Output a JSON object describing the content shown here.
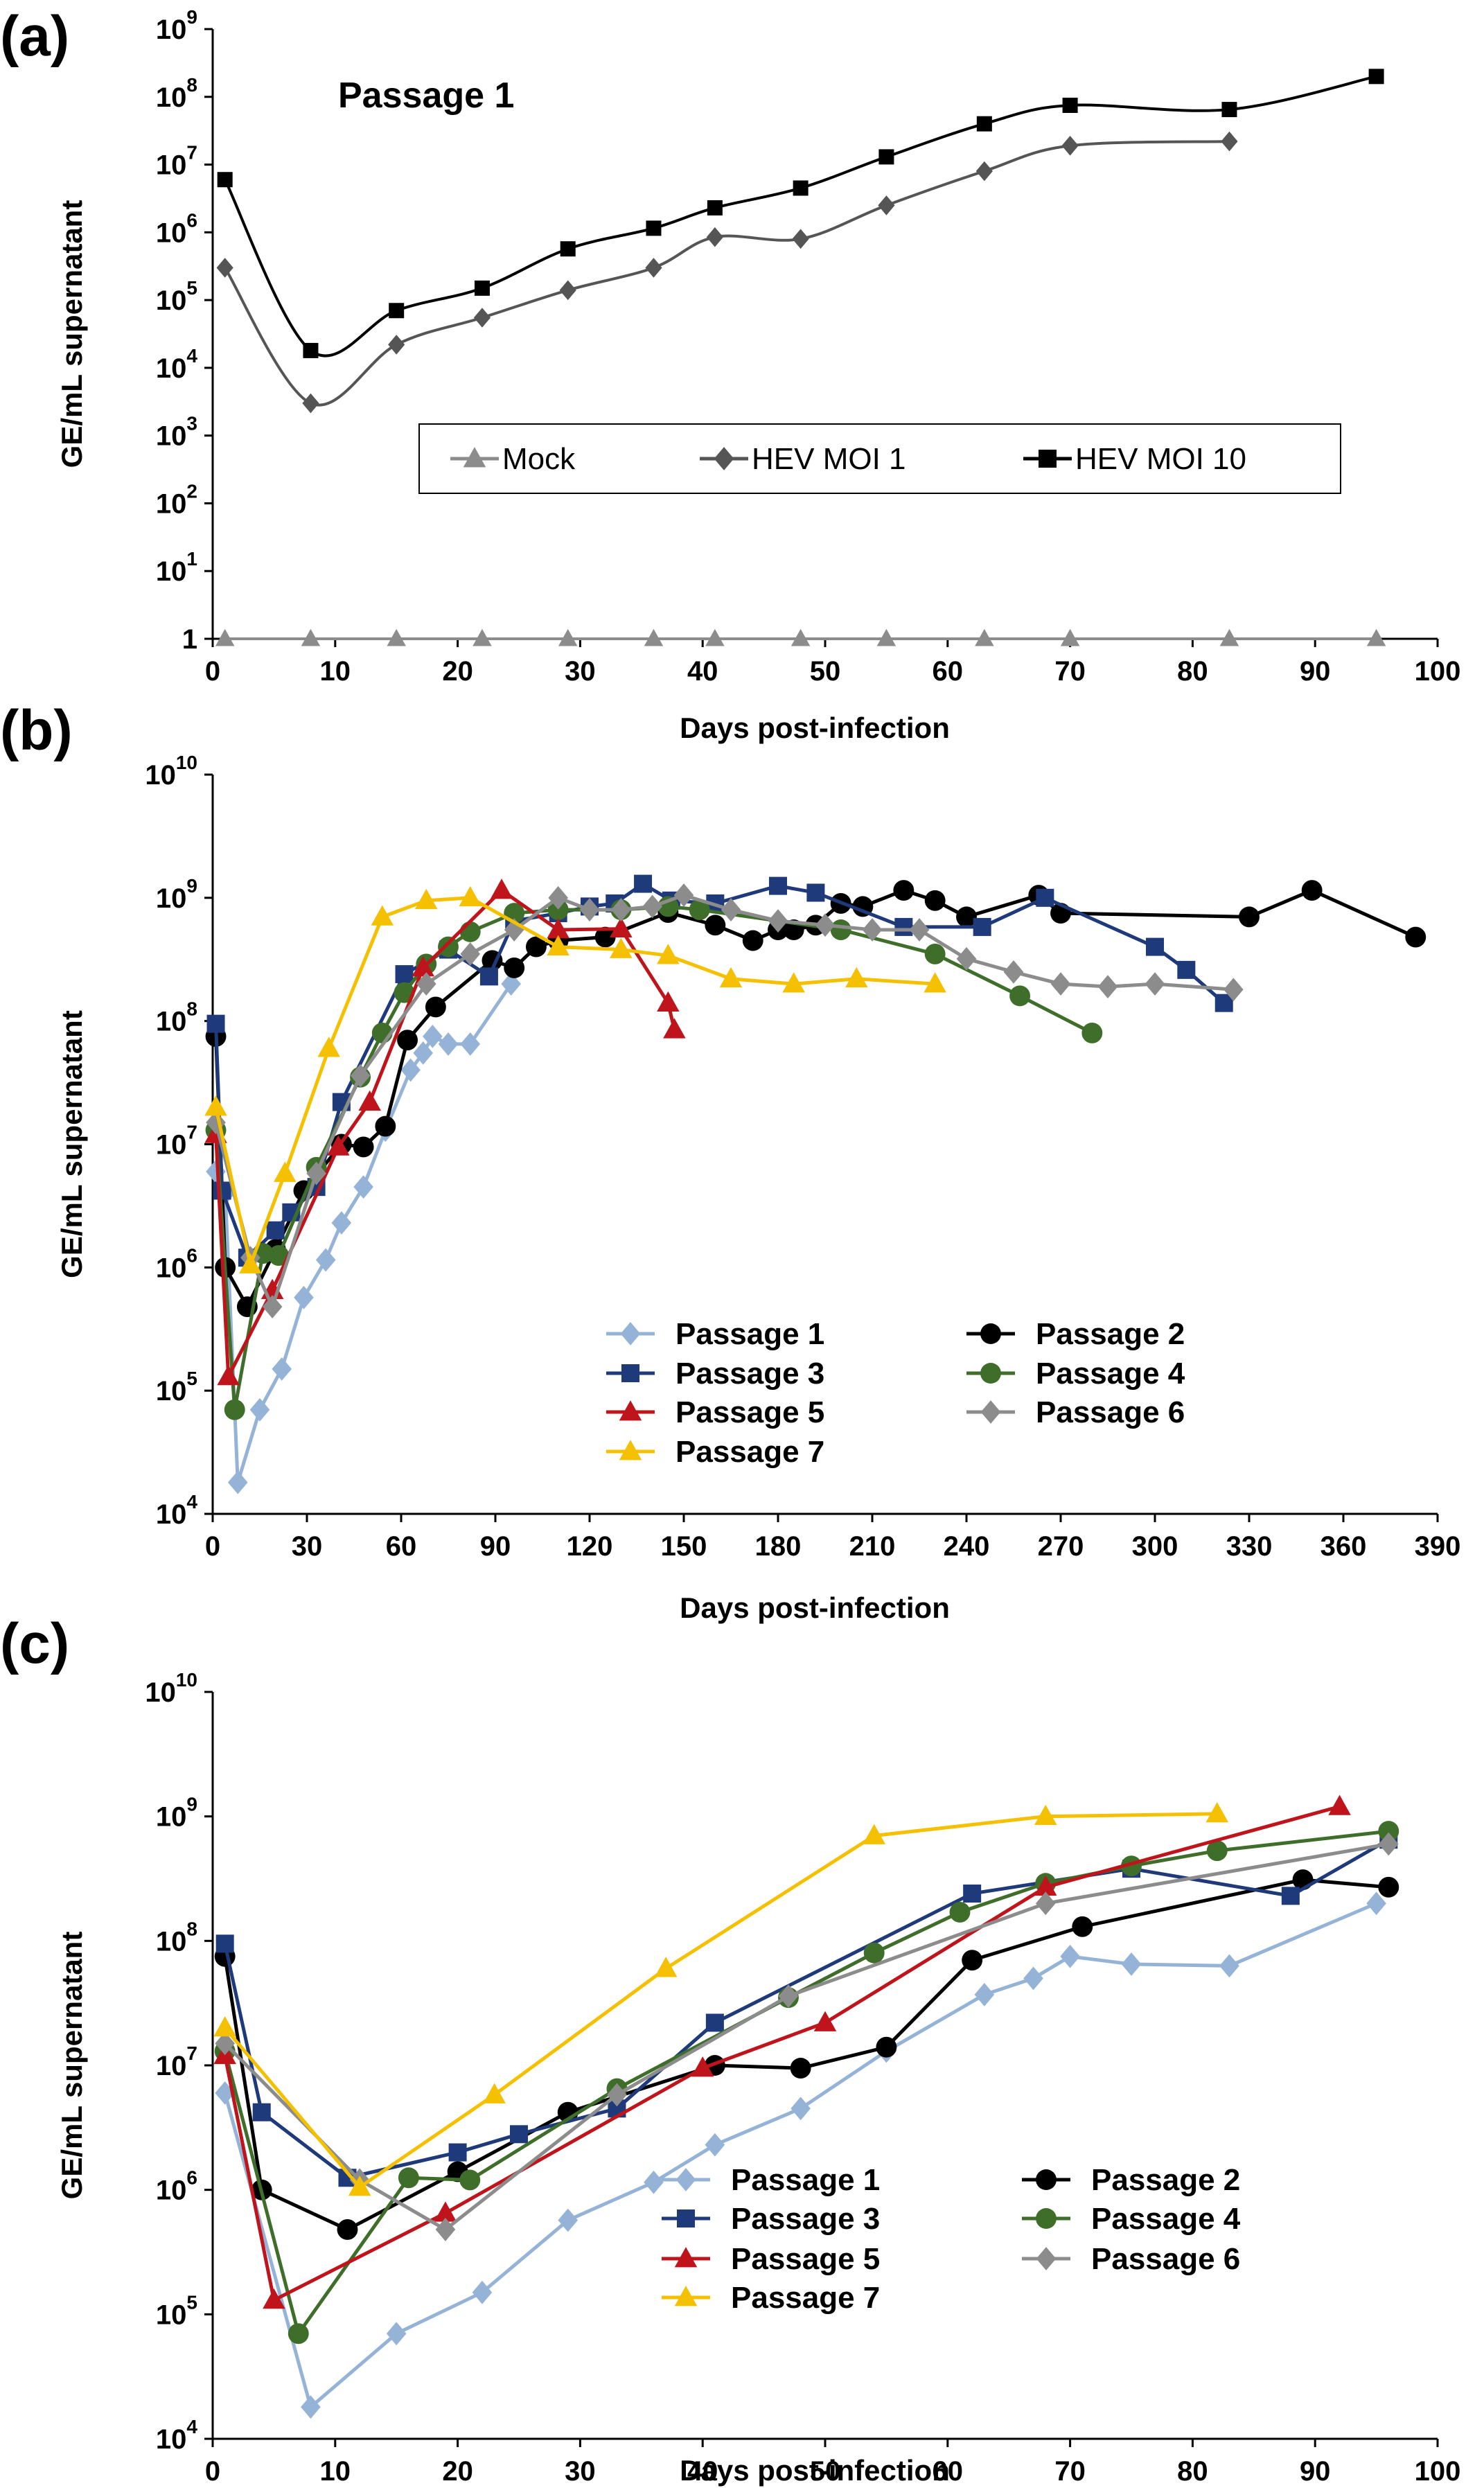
{
  "chart_data": [
    {
      "panel_label": "(a)",
      "type": "line",
      "title": "Passage 1",
      "xlabel": "Days post-infection",
      "ylabel": "GE/mL supernatant",
      "xlim": [
        0,
        100
      ],
      "xticks": [
        0,
        10,
        20,
        30,
        40,
        50,
        60,
        70,
        80,
        90,
        100
      ],
      "yscale": "log",
      "ylim": [
        1,
        1000000000
      ],
      "yticks": [
        {
          "base": "1",
          "exp": ""
        },
        {
          "base": "10",
          "exp": "1"
        },
        {
          "base": "10",
          "exp": "2"
        },
        {
          "base": "10",
          "exp": "3"
        },
        {
          "base": "10",
          "exp": "4"
        },
        {
          "base": "10",
          "exp": "5"
        },
        {
          "base": "10",
          "exp": "6"
        },
        {
          "base": "10",
          "exp": "7"
        },
        {
          "base": "10",
          "exp": "8"
        },
        {
          "base": "10",
          "exp": "9"
        }
      ],
      "legend_position": "center-right boxed",
      "series": [
        {
          "name": "Mock",
          "color": "#8c8c8c",
          "marker": "triangle",
          "x": [
            1,
            8,
            15,
            22,
            29,
            36,
            41,
            48,
            55,
            63,
            70,
            83,
            95
          ],
          "y": [
            1,
            1,
            1,
            1,
            1,
            1,
            1,
            1,
            1,
            1,
            1,
            1,
            1
          ]
        },
        {
          "name": "HEV MOI 1",
          "color": "#555555",
          "marker": "diamond",
          "x": [
            1,
            8,
            15,
            22,
            29,
            36,
            41,
            48,
            55,
            63,
            70,
            83
          ],
          "y": [
            300000,
            3000,
            22000,
            55000,
            140000,
            300000,
            850000,
            800000,
            2500000,
            8000000,
            19000000,
            22000000
          ]
        },
        {
          "name": "HEV MOI 10",
          "color": "#000000",
          "marker": "square",
          "x": [
            1,
            8,
            15,
            22,
            29,
            36,
            41,
            48,
            55,
            63,
            70,
            83,
            95
          ],
          "y": [
            6000000,
            18000,
            70000,
            150000,
            570000,
            1150000,
            2300000,
            4500000,
            13000000,
            40000000,
            75000000,
            65000000,
            200000000
          ]
        }
      ]
    },
    {
      "panel_label": "(b)",
      "type": "line",
      "xlabel": "Days post-infection",
      "ylabel": "GE/mL supernatant",
      "xlim": [
        0,
        390
      ],
      "xticks": [
        0,
        30,
        60,
        90,
        120,
        150,
        180,
        210,
        240,
        270,
        300,
        330,
        360,
        390
      ],
      "yscale": "log",
      "ylim": [
        10000,
        10000000000
      ],
      "yticks": [
        {
          "base": "10",
          "exp": "4"
        },
        {
          "base": "10",
          "exp": "5"
        },
        {
          "base": "10",
          "exp": "6"
        },
        {
          "base": "10",
          "exp": "7"
        },
        {
          "base": "10",
          "exp": "8"
        },
        {
          "base": "10",
          "exp": "9"
        },
        {
          "base": "10",
          "exp": "10"
        }
      ],
      "legend_position": "bottom-center",
      "series": [
        {
          "name": "Passage 1",
          "color": "#95b3d7",
          "marker": "diamond",
          "x": [
            1,
            4,
            8,
            15,
            22,
            29,
            36,
            41,
            48,
            55,
            63,
            67,
            70,
            75,
            82,
            95
          ],
          "y": [
            6000000,
            4000000,
            18000,
            70000,
            150000,
            570000,
            1150000,
            2300000,
            4500000,
            13000000,
            40000000,
            55000000,
            75000000,
            65000000,
            65000000,
            200000000
          ]
        },
        {
          "name": "Passage 2",
          "color": "#000000",
          "marker": "circle",
          "x": [
            1,
            4,
            11,
            20,
            29,
            41,
            48,
            55,
            62,
            71,
            89,
            96,
            103,
            110,
            125,
            145,
            160,
            172,
            180,
            185,
            192,
            200,
            207,
            220,
            230,
            240,
            263,
            270,
            330,
            350,
            383
          ],
          "y": [
            75000000,
            1000000,
            480000,
            1400000,
            4200000,
            10000000,
            9500000,
            14000000,
            70000000,
            130000000,
            310000000,
            270000000,
            400000000,
            450000000,
            480000000,
            760000000,
            600000000,
            450000000,
            550000000,
            550000000,
            600000000,
            900000000,
            850000000,
            1150000000,
            950000000,
            700000000,
            1050000000,
            750000000,
            700000000,
            1150000000,
            480000000
          ]
        },
        {
          "name": "Passage 3",
          "color": "#1f3a7a",
          "marker": "square",
          "x": [
            1,
            3,
            11,
            20,
            25,
            33,
            41,
            61,
            75,
            88,
            96,
            110,
            120,
            128,
            137,
            146,
            160,
            180,
            192,
            220,
            245,
            265,
            300,
            310,
            322
          ],
          "y": [
            95000000,
            4200000,
            1200000,
            2000000,
            2800000,
            4500000,
            22000000,
            240000000,
            380000000,
            230000000,
            650000000,
            750000000,
            850000000,
            900000000,
            1300000000,
            950000000,
            900000000,
            1250000000,
            1100000000,
            580000000,
            580000000,
            1000000000,
            400000000,
            260000000,
            140000000
          ]
        },
        {
          "name": "Passage 4",
          "color": "#3f6e2a",
          "marker": "circle",
          "x": [
            1,
            7,
            16,
            21,
            33,
            47,
            54,
            61,
            68,
            75,
            82,
            96,
            110,
            130,
            145,
            155,
            200,
            230,
            257,
            280
          ],
          "y": [
            13000000,
            70000,
            1300000,
            1250000,
            6500000,
            35000000,
            80000000,
            170000000,
            290000000,
            400000000,
            530000000,
            750000000,
            800000000,
            800000000,
            850000000,
            800000000,
            550000000,
            350000000,
            160000000,
            80000000
          ]
        },
        {
          "name": "Passage 5",
          "color": "#c0141c",
          "marker": "triangle",
          "x": [
            1,
            5,
            19,
            40,
            50,
            67,
            92,
            110,
            130,
            145,
            147
          ],
          "y": [
            12000000,
            130000,
            650000,
            9500000,
            22000000,
            270000000,
            1150000000,
            550000000,
            560000000,
            140000000,
            85000000
          ]
        },
        {
          "name": "Passage 6",
          "color": "#8c8c8c",
          "marker": "diamond",
          "x": [
            1,
            12,
            19,
            33,
            47,
            68,
            82,
            96,
            110,
            120,
            130,
            140,
            150,
            165,
            180,
            195,
            210,
            225,
            240,
            255,
            270,
            285,
            300,
            325
          ],
          "y": [
            15000000,
            1200000,
            480000,
            5800000,
            36000000,
            200000000,
            350000000,
            550000000,
            1000000000,
            800000000,
            800000000,
            850000000,
            1050000000,
            800000000,
            650000000,
            600000000,
            550000000,
            550000000,
            320000000,
            250000000,
            200000000,
            190000000,
            200000000,
            180000000
          ]
        },
        {
          "name": "Passage 7",
          "color": "#f5c000",
          "marker": "triangle",
          "x": [
            1,
            12,
            23,
            37,
            54,
            68,
            82,
            110,
            130,
            145,
            165,
            185,
            205,
            230
          ],
          "y": [
            20000000,
            1050000,
            5800000,
            60000000,
            700000000,
            950000000,
            1000000000,
            400000000,
            380000000,
            340000000,
            220000000,
            200000000,
            220000000,
            200000000
          ]
        }
      ]
    },
    {
      "panel_label": "(c)",
      "type": "line",
      "xlabel": "Days post-infection",
      "ylabel": "GE/mL supernatant",
      "xlim": [
        0,
        100
      ],
      "xticks": [
        0,
        10,
        20,
        30,
        40,
        50,
        60,
        70,
        80,
        90,
        100
      ],
      "yscale": "log",
      "ylim": [
        10000,
        10000000000
      ],
      "yticks": [
        {
          "base": "10",
          "exp": "4"
        },
        {
          "base": "10",
          "exp": "5"
        },
        {
          "base": "10",
          "exp": "6"
        },
        {
          "base": "10",
          "exp": "7"
        },
        {
          "base": "10",
          "exp": "8"
        },
        {
          "base": "10",
          "exp": "9"
        },
        {
          "base": "10",
          "exp": "10"
        }
      ],
      "legend_position": "bottom-right",
      "series": [
        {
          "name": "Passage 1",
          "color": "#95b3d7",
          "marker": "diamond",
          "x": [
            1,
            8,
            15,
            22,
            29,
            36,
            41,
            48,
            55,
            63,
            67,
            70,
            75,
            83,
            95
          ],
          "y": [
            6000000,
            18000,
            70000,
            150000,
            570000,
            1150000,
            2300000,
            4500000,
            13000000,
            37000000,
            50000000,
            75000000,
            65000000,
            63000000,
            200000000
          ]
        },
        {
          "name": "Passage 2",
          "color": "#000000",
          "marker": "circle",
          "x": [
            1,
            4,
            11,
            20,
            29,
            41,
            48,
            55,
            62,
            71,
            89,
            96
          ],
          "y": [
            75000000,
            1000000,
            480000,
            1400000,
            4200000,
            10000000,
            9500000,
            14000000,
            70000000,
            130000000,
            310000000,
            270000000
          ]
        },
        {
          "name": "Passage 3",
          "color": "#1f3a7a",
          "marker": "square",
          "x": [
            1,
            4,
            11,
            20,
            25,
            33,
            41,
            62,
            75,
            88,
            96
          ],
          "y": [
            95000000,
            4200000,
            1250000,
            2000000,
            2800000,
            4500000,
            22000000,
            240000000,
            380000000,
            230000000,
            650000000
          ]
        },
        {
          "name": "Passage 4",
          "color": "#3f6e2a",
          "marker": "circle",
          "x": [
            1,
            7,
            16,
            21,
            33,
            47,
            54,
            61,
            68,
            75,
            82,
            96
          ],
          "y": [
            13000000,
            70000,
            1250000,
            1200000,
            6500000,
            35000000,
            80000000,
            170000000,
            290000000,
            400000000,
            530000000,
            760000000
          ]
        },
        {
          "name": "Passage 5",
          "color": "#c0141c",
          "marker": "triangle",
          "x": [
            1,
            5,
            19,
            40,
            50,
            68,
            92
          ],
          "y": [
            12000000,
            130000,
            650000,
            9500000,
            22000000,
            270000000,
            1200000000
          ]
        },
        {
          "name": "Passage 6",
          "color": "#8c8c8c",
          "marker": "diamond",
          "x": [
            1,
            12,
            19,
            33,
            47,
            68,
            96
          ],
          "y": [
            15000000,
            1200000,
            480000,
            5800000,
            36000000,
            200000000,
            600000000
          ]
        },
        {
          "name": "Passage 7",
          "color": "#f5c000",
          "marker": "triangle",
          "x": [
            1,
            12,
            23,
            37,
            54,
            68,
            82
          ],
          "y": [
            20000000,
            1050000,
            5800000,
            60000000,
            700000000,
            1000000000,
            1050000000
          ]
        }
      ]
    }
  ]
}
